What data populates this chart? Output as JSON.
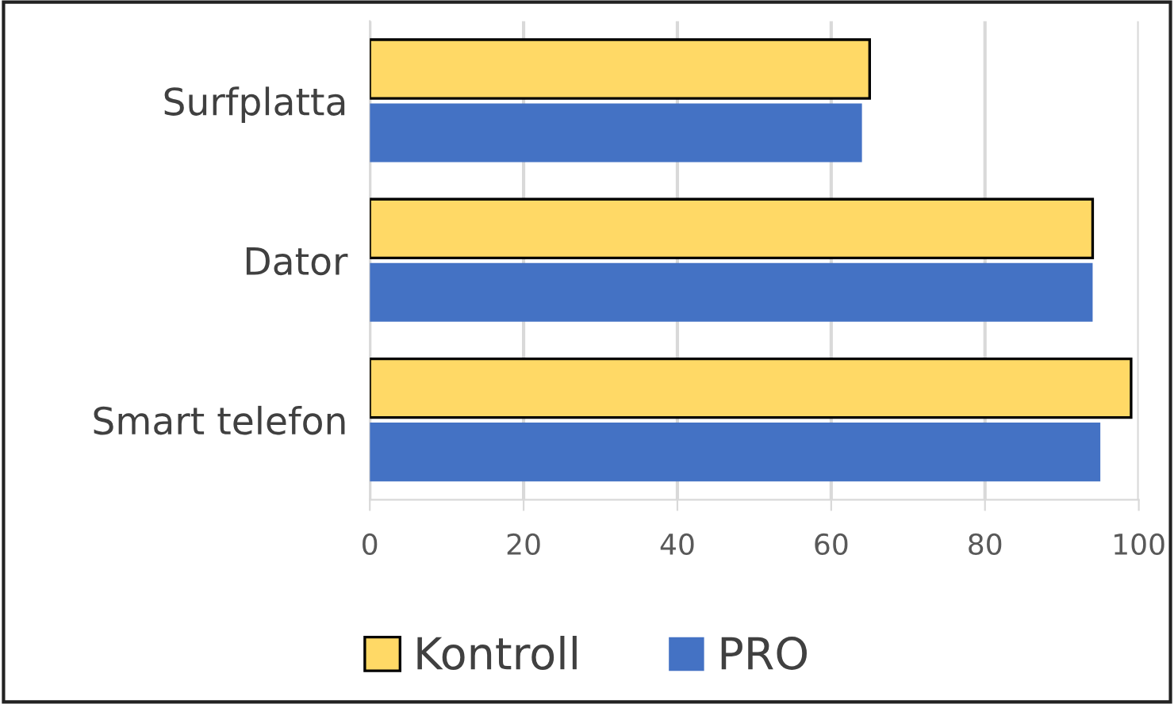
{
  "chart_data": {
    "type": "bar",
    "orientation": "horizontal",
    "categories": [
      "Surfplatta",
      "Dator",
      "Smart telefon"
    ],
    "series": [
      {
        "name": "Kontroll",
        "color": "#ffd966",
        "values": [
          65,
          94,
          99
        ]
      },
      {
        "name": "PRO",
        "color": "#4472c4",
        "values": [
          64,
          94,
          95
        ]
      }
    ],
    "xlim": [
      0,
      100
    ],
    "xticks": [
      0,
      20,
      40,
      60,
      80,
      100
    ],
    "grid": "x",
    "legend": "bottom"
  }
}
